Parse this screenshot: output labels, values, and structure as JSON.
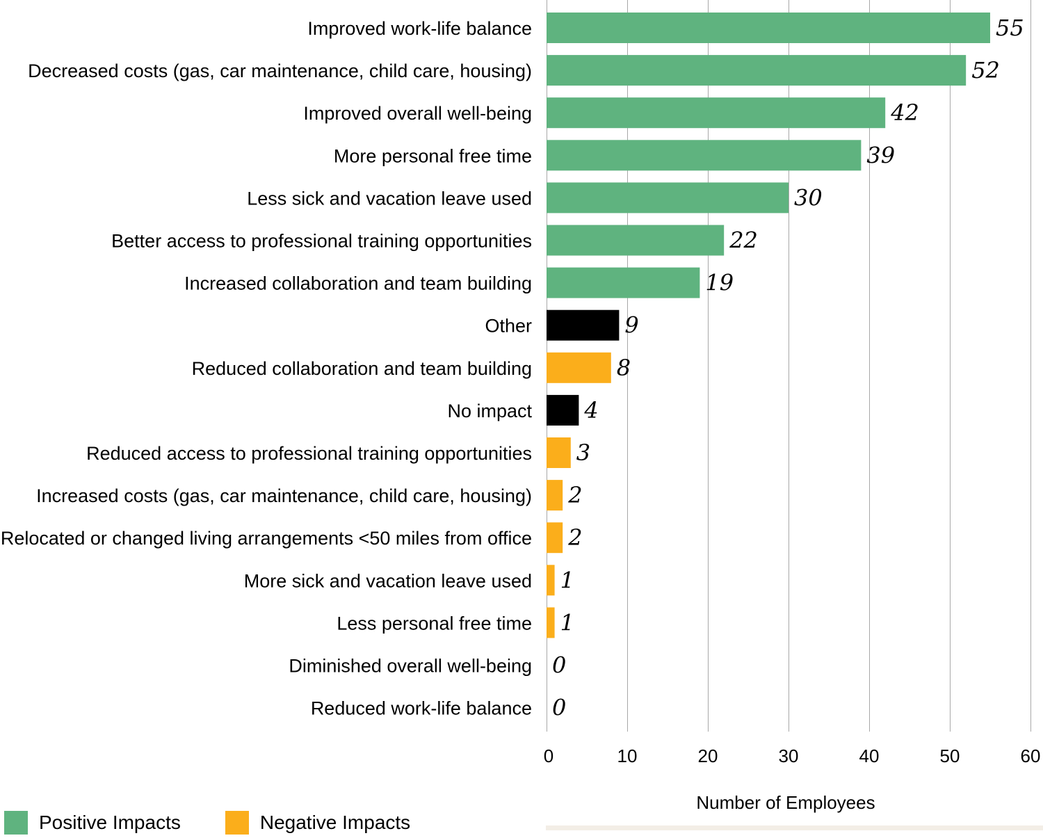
{
  "chart_data": {
    "type": "bar",
    "orientation": "horizontal",
    "categories": [
      "Improved work-life balance",
      "Decreased costs (gas, car maintenance, child care, housing)",
      "Improved overall well-being",
      "More personal free time",
      "Less sick and vacation leave used",
      "Better access to professional training opportunities",
      "Increased collaboration and team building",
      "Other",
      "Reduced collaboration and team building",
      "No impact",
      "Reduced access to professional training opportunities",
      "Increased costs (gas, car maintenance, child care, housing)",
      "Relocated or changed living arrangements <50 miles from office",
      "More sick and vacation leave used",
      "Less personal free time",
      "Diminished overall well-being",
      "Reduced work-life balance"
    ],
    "values": [
      55,
      52,
      42,
      39,
      30,
      22,
      19,
      9,
      8,
      4,
      3,
      2,
      2,
      1,
      1,
      0,
      0
    ],
    "groups": [
      "positive",
      "positive",
      "positive",
      "positive",
      "positive",
      "positive",
      "positive",
      "neutral",
      "negative",
      "neutral",
      "negative",
      "negative",
      "negative",
      "negative",
      "negative",
      "negative",
      "negative"
    ],
    "value_labels": [
      "55",
      "52",
      "42",
      "39",
      "30",
      "22",
      "19",
      "9",
      "8",
      "4",
      "3",
      "2",
      "2",
      "1",
      "1",
      "0",
      "0"
    ],
    "xlabel": "Number of Employees",
    "xlim": [
      0,
      60
    ],
    "xticks": [
      0,
      10,
      20,
      30,
      40,
      50,
      60
    ],
    "xtick_labels": [
      "0",
      "10",
      "20",
      "30",
      "40",
      "50",
      "60"
    ],
    "grid": true,
    "legend": [
      {
        "name": "Positive Impacts",
        "color": "#5fb37f"
      },
      {
        "name": "Negative Impacts",
        "color": "#fbae1b"
      }
    ],
    "legend_position": "bottom-left"
  },
  "colors": {
    "positive": "#5fb37f",
    "negative": "#fbae1b",
    "neutral": "#000000"
  }
}
